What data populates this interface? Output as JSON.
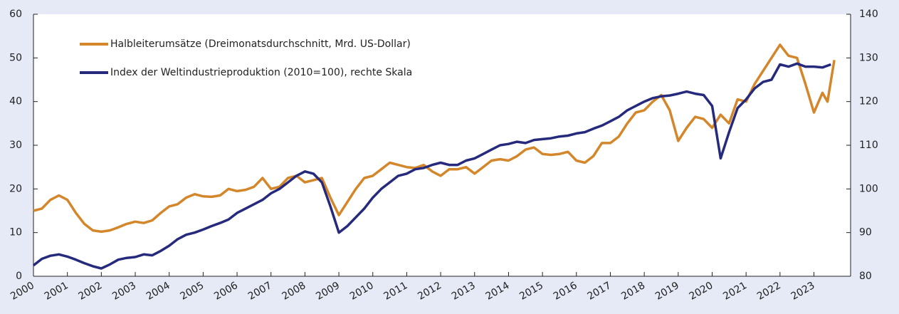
{
  "chart_data": {
    "type": "line",
    "series": [
      {
        "name": "Halbleiterumsätze (Dreimonatsdurchschnitt, Mrd. US-Dollar)",
        "color": "#d4862a",
        "axis": "y",
        "x": [
          2000,
          2000.25,
          2000.5,
          2000.75,
          2001,
          2001.25,
          2001.5,
          2001.75,
          2002,
          2002.25,
          2002.5,
          2002.75,
          2003,
          2003.25,
          2003.5,
          2003.75,
          2004,
          2004.25,
          2004.5,
          2004.75,
          2005,
          2005.25,
          2005.5,
          2005.75,
          2006,
          2006.25,
          2006.5,
          2006.75,
          2007,
          2007.25,
          2007.5,
          2007.75,
          2008,
          2008.25,
          2008.5,
          2008.75,
          2009,
          2009.25,
          2009.5,
          2009.75,
          2010,
          2010.25,
          2010.5,
          2010.75,
          2011,
          2011.25,
          2011.5,
          2011.75,
          2012,
          2012.25,
          2012.5,
          2012.75,
          2013,
          2013.25,
          2013.5,
          2013.75,
          2014,
          2014.25,
          2014.5,
          2014.75,
          2015,
          2015.25,
          2015.5,
          2015.75,
          2016,
          2016.25,
          2016.5,
          2016.75,
          2017,
          2017.25,
          2017.5,
          2017.75,
          2018,
          2018.25,
          2018.5,
          2018.75,
          2019,
          2019.25,
          2019.5,
          2019.75,
          2020,
          2020.25,
          2020.5,
          2020.75,
          2021,
          2021.25,
          2021.5,
          2021.75,
          2022,
          2022.25,
          2022.5,
          2022.75,
          2023,
          2023.25,
          2023.4,
          2023.6
        ],
        "values": [
          15,
          15.5,
          17.5,
          18.5,
          17.5,
          14.5,
          12,
          10.5,
          10.2,
          10.5,
          11.2,
          12,
          12.5,
          12.2,
          12.8,
          14.5,
          16,
          16.5,
          18,
          18.8,
          18.3,
          18.2,
          18.5,
          20,
          19.5,
          19.8,
          20.5,
          22.5,
          20,
          20.5,
          22.5,
          23,
          21.5,
          22,
          22.5,
          18,
          14,
          17,
          20,
          22.5,
          23,
          24.5,
          26,
          25.5,
          25,
          24.8,
          25.5,
          24,
          23,
          24.5,
          24.5,
          25,
          23.5,
          25,
          26.5,
          26.8,
          26.5,
          27.5,
          29,
          29.5,
          28,
          27.8,
          28,
          28.5,
          26.5,
          26,
          27.5,
          30.5,
          30.5,
          32,
          35,
          37.5,
          38,
          40,
          41.5,
          38,
          31,
          34,
          36.5,
          36,
          34,
          37,
          35,
          40.5,
          40,
          44,
          47,
          50,
          53,
          50.5,
          50,
          44,
          37.5,
          42,
          40,
          49.5
        ]
      },
      {
        "name": "Index der Weltindustrieproduktion (2010=100), rechte Skala",
        "color": "#262a7c",
        "axis": "y2",
        "x": [
          2000,
          2000.25,
          2000.5,
          2000.75,
          2001,
          2001.25,
          2001.5,
          2001.75,
          2002,
          2002.25,
          2002.5,
          2002.75,
          2003,
          2003.25,
          2003.5,
          2003.75,
          2004,
          2004.25,
          2004.5,
          2004.75,
          2005,
          2005.25,
          2005.5,
          2005.75,
          2006,
          2006.25,
          2006.5,
          2006.75,
          2007,
          2007.25,
          2007.5,
          2007.75,
          2008,
          2008.25,
          2008.5,
          2008.75,
          2009,
          2009.25,
          2009.5,
          2009.75,
          2010,
          2010.25,
          2010.5,
          2010.75,
          2011,
          2011.25,
          2011.5,
          2011.75,
          2012,
          2012.25,
          2012.5,
          2012.75,
          2013,
          2013.25,
          2013.5,
          2013.75,
          2014,
          2014.25,
          2014.5,
          2014.75,
          2015,
          2015.25,
          2015.5,
          2015.75,
          2016,
          2016.25,
          2016.5,
          2016.75,
          2017,
          2017.25,
          2017.5,
          2017.75,
          2018,
          2018.25,
          2018.5,
          2018.75,
          2019,
          2019.25,
          2019.5,
          2019.75,
          2020,
          2020.25,
          2020.5,
          2020.75,
          2021,
          2021.25,
          2021.5,
          2021.75,
          2022,
          2022.25,
          2022.5,
          2022.75,
          2023,
          2023.25,
          2023.5
        ],
        "values": [
          82.5,
          84,
          84.7,
          85,
          84.5,
          83.8,
          83,
          82.3,
          81.8,
          82.7,
          83.8,
          84.2,
          84.4,
          85,
          84.8,
          85.8,
          87,
          88.5,
          89.5,
          90,
          90.7,
          91.5,
          92.2,
          93,
          94.5,
          95.5,
          96.5,
          97.5,
          99,
          100,
          101.5,
          103,
          104,
          103.5,
          101.5,
          96,
          90,
          91.5,
          93.5,
          95.5,
          98,
          100,
          101.5,
          103,
          103.5,
          104.5,
          104.8,
          105.5,
          106,
          105.5,
          105.5,
          106.5,
          107,
          108,
          109,
          110,
          110.3,
          110.8,
          110.5,
          111.2,
          111.4,
          111.6,
          112,
          112.2,
          112.7,
          113,
          113.8,
          114.5,
          115.5,
          116.5,
          118,
          119,
          120,
          120.8,
          121.2,
          121.4,
          121.8,
          122.3,
          121.8,
          121.5,
          119,
          107,
          113,
          118.5,
          120.5,
          123,
          124.5,
          125,
          128.5,
          128,
          128.7,
          128,
          128,
          127.8,
          128.5
        ]
      }
    ],
    "xlim": [
      2000,
      2024.08
    ],
    "xticks": [
      2000,
      2001,
      2002,
      2003,
      2004,
      2005,
      2006,
      2007,
      2008,
      2009,
      2010,
      2011,
      2012,
      2013,
      2014,
      2015,
      2016,
      2017,
      2018,
      2019,
      2020,
      2021,
      2022,
      2023
    ],
    "ylim": [
      0,
      60
    ],
    "yticks": [
      0,
      10,
      20,
      30,
      40,
      50,
      60
    ],
    "y2lim": [
      80,
      140
    ],
    "y2ticks": [
      80,
      90,
      100,
      110,
      120,
      130,
      140
    ],
    "legend": "upper-left"
  }
}
